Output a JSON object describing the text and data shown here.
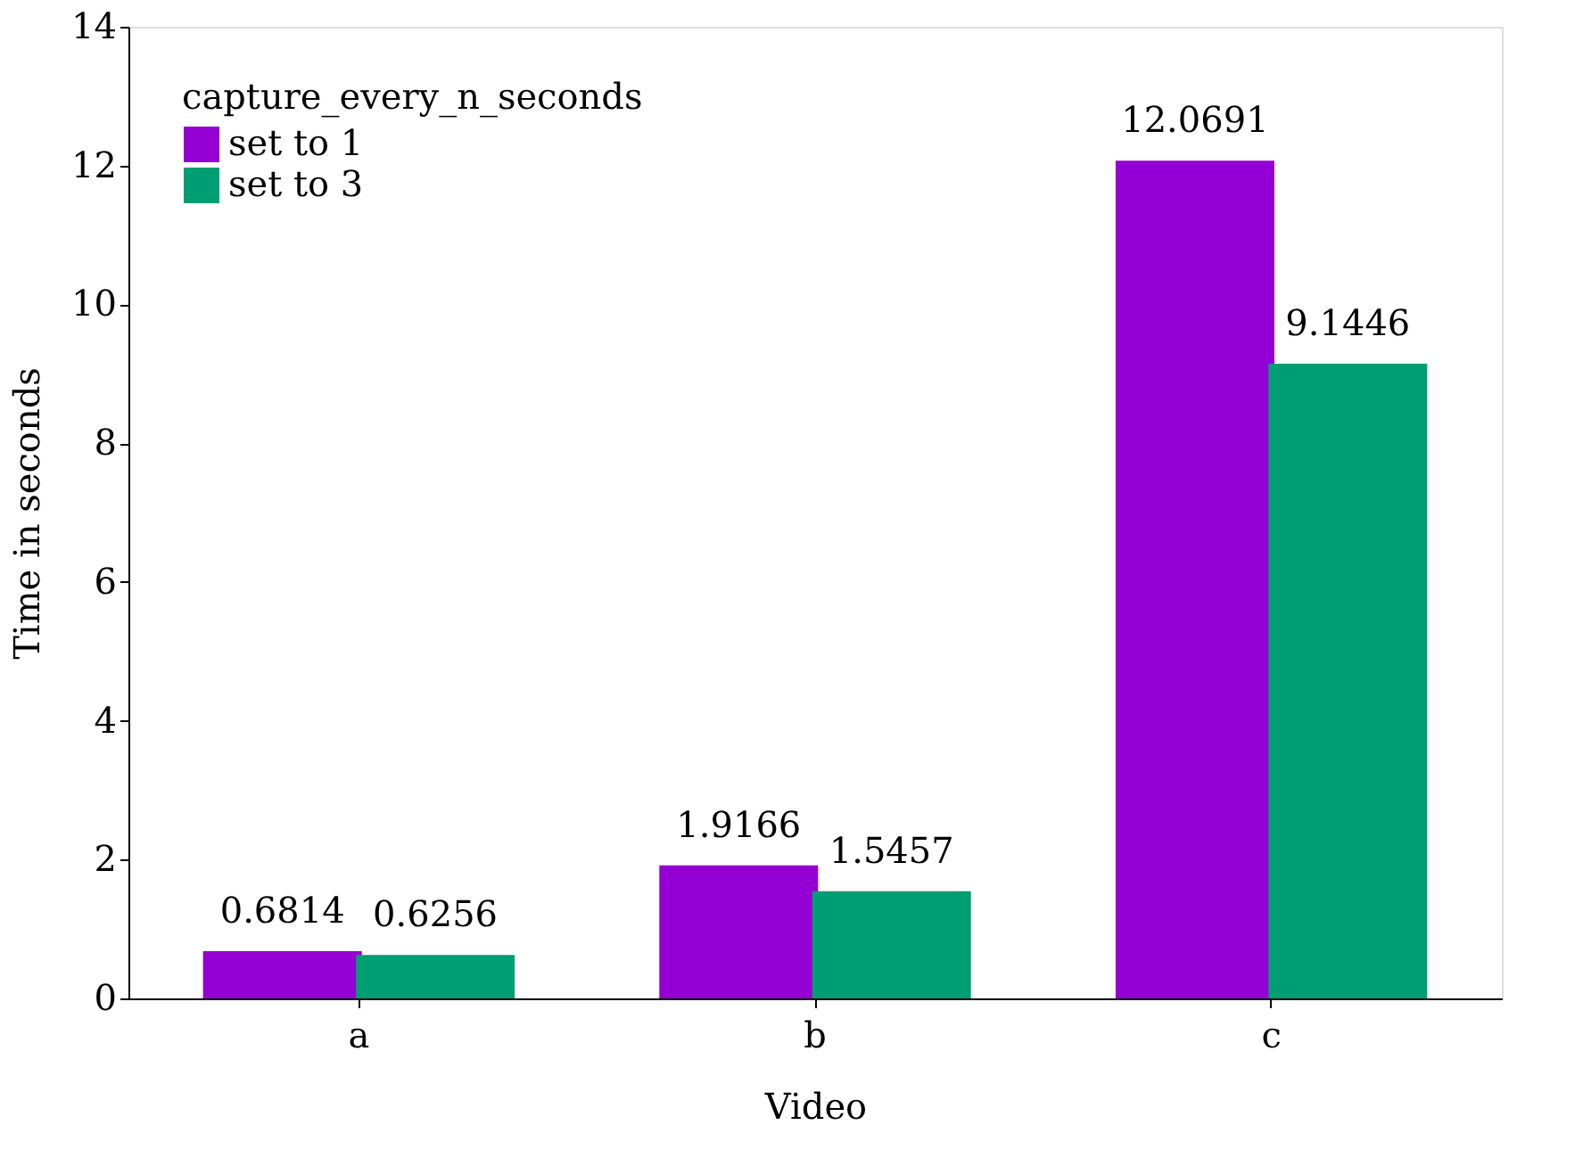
{
  "chart_data": {
    "type": "bar",
    "xlabel": "Video",
    "ylabel": "Time in seconds",
    "legend_title": "capture_every_n_seconds",
    "categories": [
      "a",
      "b",
      "c"
    ],
    "series": [
      {
        "name": "set to 1",
        "color": "#9400d3",
        "values": [
          0.6814,
          1.9166,
          12.0691
        ]
      },
      {
        "name": "set to 3",
        "color": "#009e73",
        "values": [
          0.6256,
          1.5457,
          9.1446
        ]
      }
    ],
    "ylim": [
      0,
      14
    ],
    "yticks": [
      0,
      2,
      4,
      6,
      8,
      10,
      12,
      14
    ],
    "data_labels": true,
    "grid": false,
    "legend": "top left"
  }
}
